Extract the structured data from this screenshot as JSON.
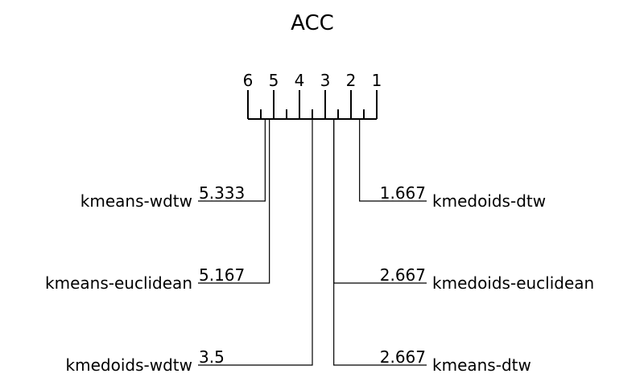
{
  "chart_data": {
    "type": "critical-difference",
    "title": "ACC",
    "xlim": [
      1,
      6
    ],
    "ticks": [
      "6",
      "5",
      "4",
      "3",
      "2",
      "1"
    ],
    "left_methods": [
      {
        "name": "kmeans-wdtw",
        "rank": 5.333,
        "rank_label": "5.333"
      },
      {
        "name": "kmeans-euclidean",
        "rank": 5.167,
        "rank_label": "5.167"
      },
      {
        "name": "kmedoids-wdtw",
        "rank": 3.5,
        "rank_label": "3.5"
      }
    ],
    "right_methods": [
      {
        "name": "kmedoids-dtw",
        "rank": 1.667,
        "rank_label": "1.667"
      },
      {
        "name": "kmedoids-euclidean",
        "rank": 2.667,
        "rank_label": "2.667"
      },
      {
        "name": "kmeans-dtw",
        "rank": 2.667,
        "rank_label": "2.667"
      }
    ]
  }
}
